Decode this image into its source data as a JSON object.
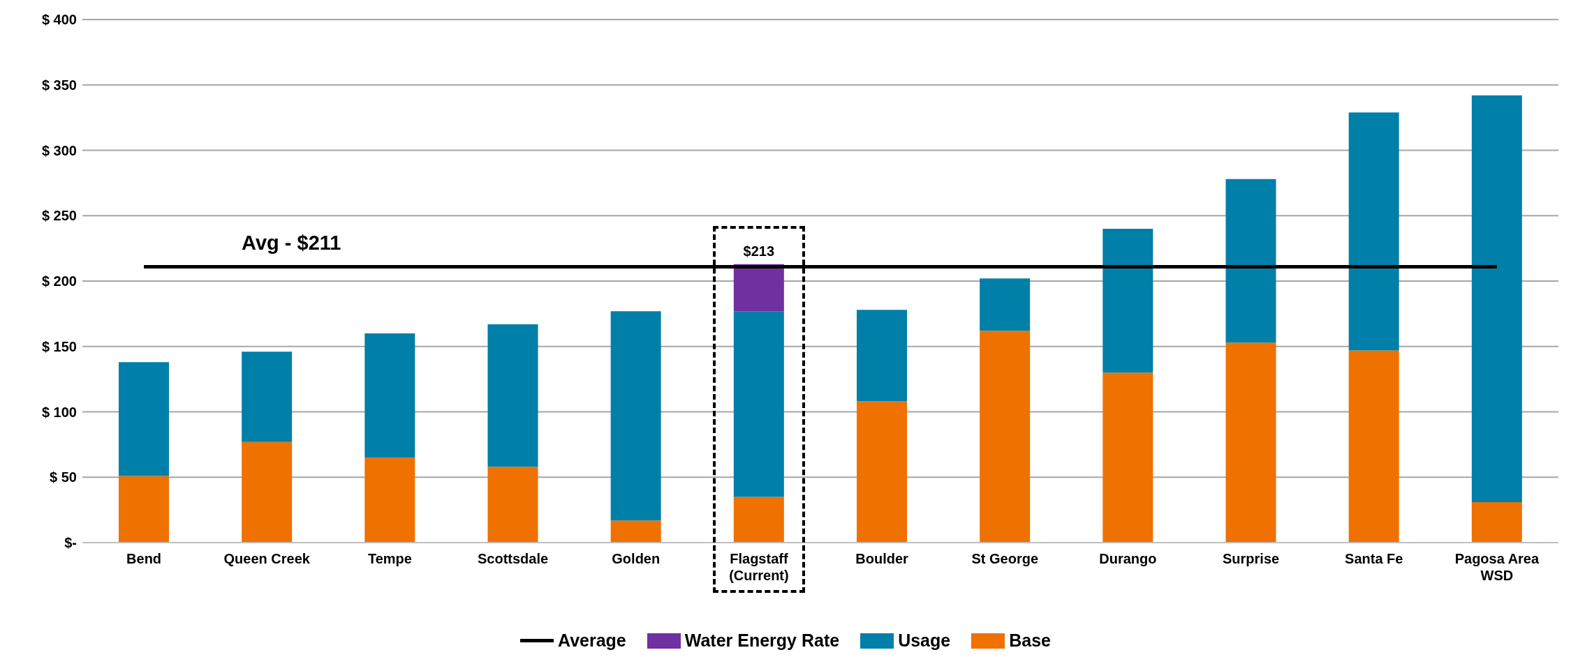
{
  "chart_data": {
    "type": "bar",
    "stacked": true,
    "categories": [
      "Bend",
      "Queen Creek",
      "Tempe",
      "Scottsdale",
      "Golden",
      "Flagstaff\n(Current)",
      "Boulder",
      "St George",
      "Durango",
      "Surprise",
      "Santa Fe",
      "Pagosa Area\nWSD"
    ],
    "series": [
      {
        "name": "Base",
        "color": "#ef7100",
        "values": [
          51,
          77,
          65,
          58,
          17,
          35,
          108,
          162,
          130,
          153,
          147,
          31
        ]
      },
      {
        "name": "Usage",
        "color": "#007fa8",
        "values": [
          87,
          69,
          95,
          109,
          160,
          142,
          70,
          40,
          110,
          125,
          182,
          311
        ]
      },
      {
        "name": "Water Energy Rate",
        "color": "#7030a0",
        "values": [
          null,
          null,
          null,
          null,
          null,
          36,
          null,
          null,
          null,
          null,
          null,
          null
        ]
      },
      {
        "name": "Average",
        "type": "line",
        "color": "#000000",
        "values": [
          211,
          211,
          211,
          211,
          211,
          211,
          211,
          211,
          211,
          211,
          211,
          211
        ]
      }
    ],
    "totals": [
      null,
      null,
      null,
      null,
      null,
      "$213",
      null,
      null,
      null,
      null,
      null,
      null
    ],
    "annotations": [
      "Avg - $211"
    ],
    "ylim": [
      0,
      400
    ],
    "yticks": [
      {
        "value": 0,
        "label": "$-"
      },
      {
        "value": 50,
        "label": "$ 50"
      },
      {
        "value": 100,
        "label": "$ 100"
      },
      {
        "value": 150,
        "label": "$ 150"
      },
      {
        "value": 200,
        "label": "$ 200"
      },
      {
        "value": 250,
        "label": "$ 250"
      },
      {
        "value": 300,
        "label": "$ 300"
      },
      {
        "value": 350,
        "label": "$ 350"
      },
      {
        "value": 400,
        "label": "$ 400"
      }
    ],
    "grid": "y",
    "legend": "bottom",
    "marker": "none"
  }
}
